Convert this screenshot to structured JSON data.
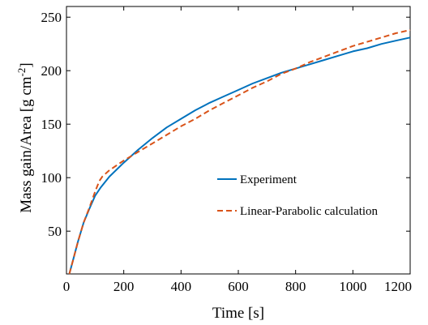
{
  "chart_data": {
    "type": "line",
    "title": "",
    "xlabel": "Time [s]",
    "ylabel": "Mass gain/Area [g cm",
    "ylabel_superscript": "-2",
    "ylabel_suffix": "]",
    "xlim": [
      0,
      1200
    ],
    "ylim": [
      10,
      260
    ],
    "xticks": [
      0,
      200,
      400,
      600,
      800,
      1000,
      1200
    ],
    "xtick_labels": [
      "0",
      "200",
      "400",
      "600",
      "800",
      "1000",
      "1200"
    ],
    "yticks": [
      50,
      100,
      150,
      200,
      250
    ],
    "ytick_labels": [
      "50",
      "100",
      "150",
      "200",
      "250"
    ],
    "grid": false,
    "legend_position": "center-right",
    "series": [
      {
        "name": "Experiment",
        "color": "#0072BD",
        "dash": "solid",
        "x": [
          10,
          20,
          40,
          60,
          80,
          100,
          120,
          150,
          200,
          250,
          300,
          350,
          400,
          450,
          500,
          550,
          600,
          650,
          700,
          750,
          800,
          850,
          900,
          950,
          1000,
          1050,
          1100,
          1150,
          1200
        ],
        "y": [
          10,
          20,
          40,
          58,
          71,
          83,
          91,
          101,
          114,
          126,
          137,
          147,
          155,
          163,
          170,
          176,
          182,
          188,
          193,
          198,
          202,
          206,
          210,
          214,
          218,
          221,
          225,
          228,
          231
        ]
      },
      {
        "name": "Linear-Parabolic calculation",
        "color": "#D95319",
        "dash": "dashed",
        "x": [
          10,
          20,
          40,
          60,
          80,
          100,
          115,
          125,
          150,
          200,
          250,
          300,
          350,
          400,
          450,
          500,
          550,
          600,
          650,
          700,
          750,
          800,
          850,
          900,
          950,
          1000,
          1050,
          1100,
          1150,
          1200
        ],
        "y": [
          10,
          20,
          40,
          58,
          72,
          87,
          97,
          101,
          107,
          116,
          124,
          132,
          140,
          148,
          155,
          163,
          170,
          177,
          184,
          190,
          197,
          202,
          208,
          213,
          218,
          223,
          227,
          231,
          235,
          238
        ]
      }
    ]
  }
}
